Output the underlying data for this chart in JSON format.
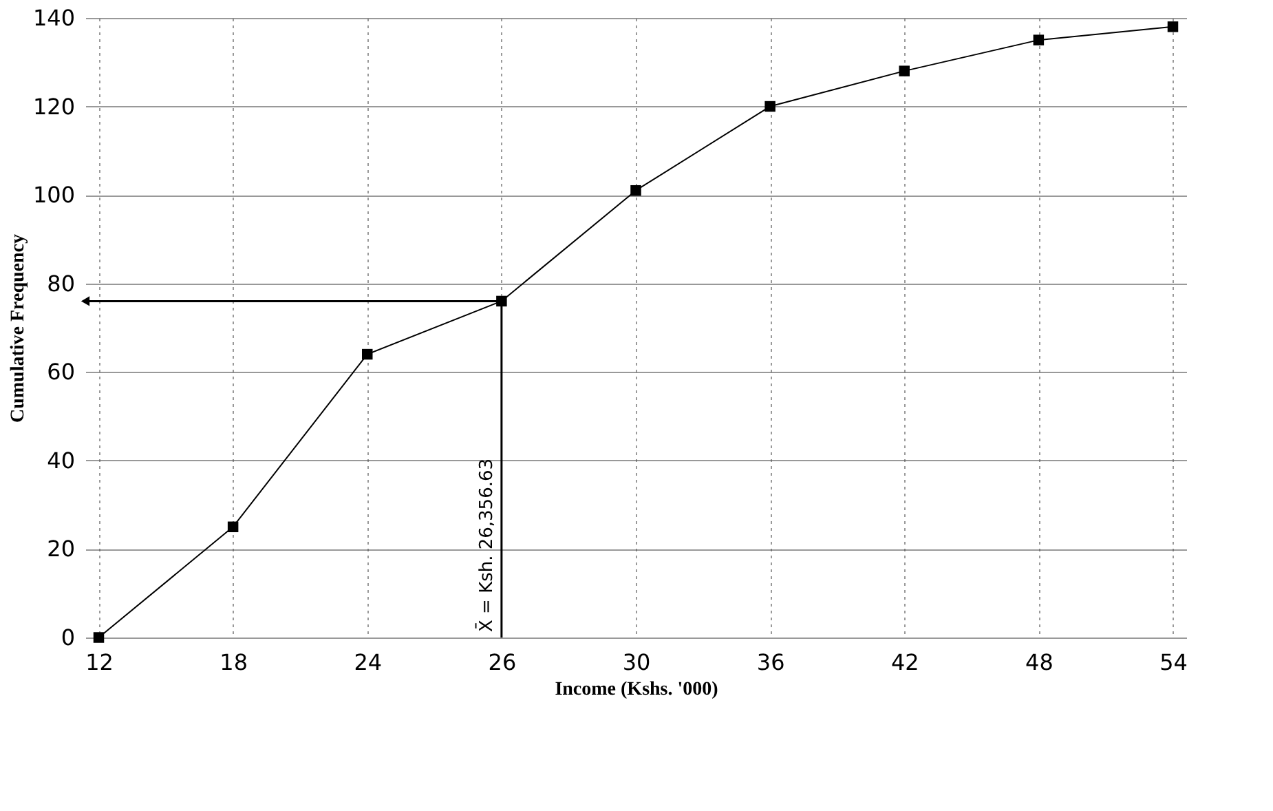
{
  "chart_data": {
    "type": "line",
    "xlabel": "Income (Kshs. '000)",
    "ylabel": "Cumulative Frequency",
    "categories": [
      "12",
      "18",
      "24",
      "26",
      "30",
      "36",
      "42",
      "48",
      "54"
    ],
    "series": [
      {
        "color": "#000000",
        "values": [
          0,
          25,
          64,
          76,
          101,
          120,
          128,
          135,
          138
        ]
      }
    ],
    "ylim": [
      0,
      140
    ],
    "yticks": [
      0,
      20,
      40,
      60,
      80,
      100,
      120,
      140
    ],
    "grid": true,
    "marker": "square",
    "line_style": "solid",
    "annotations": [
      {
        "text": "X̄ = Ksh. 26,356.63",
        "x": "26",
        "y": 76
      }
    ]
  }
}
